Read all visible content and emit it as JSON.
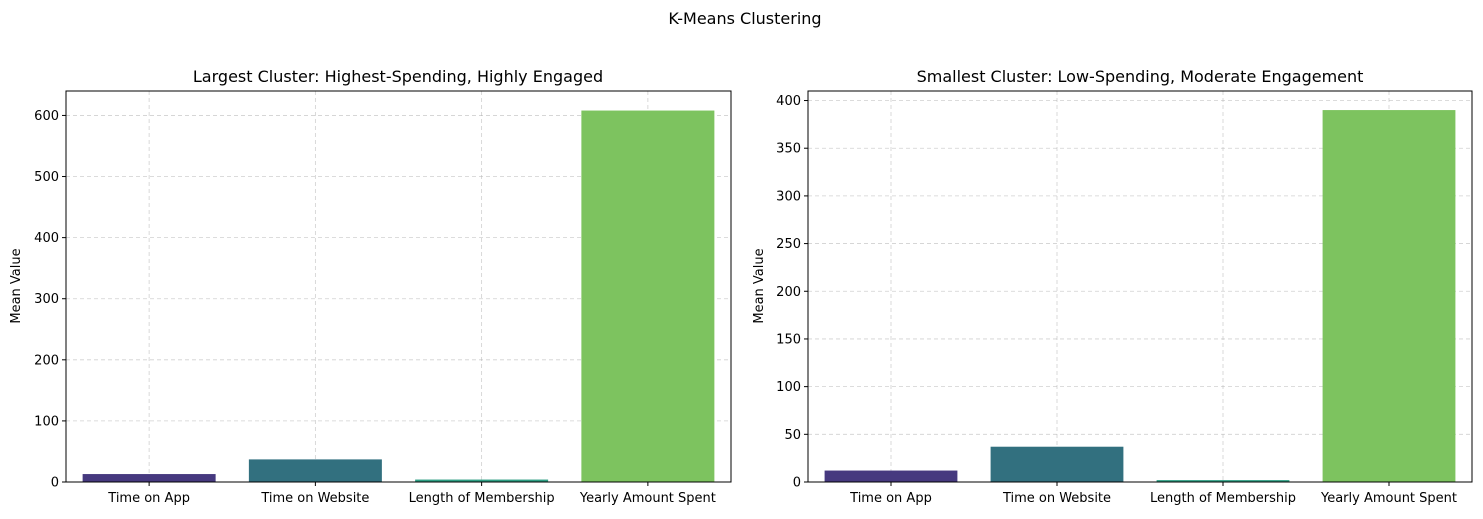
{
  "figure": {
    "suptitle": "K-Means Clustering"
  },
  "chart_data": [
    {
      "type": "bar",
      "title": "Largest Cluster: Highest-Spending, Highly Engaged",
      "xlabel": "",
      "ylabel": "Mean Value",
      "categories": [
        "Time on App",
        "Time on Website",
        "Length of Membership",
        "Yearly Amount Spent"
      ],
      "values": [
        13,
        37,
        4,
        608
      ],
      "colors": [
        "#46397f",
        "#32707f",
        "#2e9f84",
        "#7dc35f"
      ],
      "ylim": [
        0,
        640
      ],
      "yticks": [
        0,
        100,
        200,
        300,
        400,
        500,
        600
      ],
      "grid": true
    },
    {
      "type": "bar",
      "title": "Smallest Cluster: Low-Spending, Moderate Engagement",
      "xlabel": "",
      "ylabel": "Mean Value",
      "categories": [
        "Time on App",
        "Time on Website",
        "Length of Membership",
        "Yearly Amount Spent"
      ],
      "values": [
        12,
        37,
        2,
        390
      ],
      "colors": [
        "#46397f",
        "#32707f",
        "#2e9f84",
        "#7dc35f"
      ],
      "ylim": [
        0,
        410
      ],
      "yticks": [
        0,
        50,
        100,
        150,
        200,
        250,
        300,
        350,
        400
      ],
      "grid": true
    }
  ]
}
